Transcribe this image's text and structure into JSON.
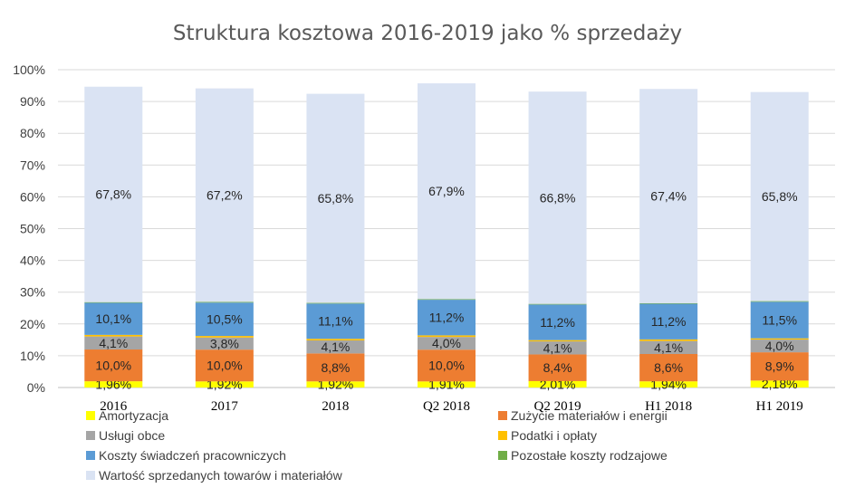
{
  "chart_data": {
    "type": "bar",
    "stacked": true,
    "title": "Struktura kosztowa 2016-2019 jako % sprzedaży",
    "xlabel": "",
    "ylabel": "",
    "ylim": [
      0,
      100
    ],
    "yticks": [
      "0%",
      "10%",
      "20%",
      "30%",
      "40%",
      "50%",
      "60%",
      "70%",
      "80%",
      "90%",
      "100%"
    ],
    "grid": true,
    "legend_position": "bottom",
    "categories": [
      "2016",
      "2017",
      "2018",
      "Q2 2018",
      "Q2 2019",
      "H1 2018",
      "H1 2019"
    ],
    "series": [
      {
        "name": "Amortyzacja",
        "color": "#FFFF00",
        "values": [
          1.96,
          1.92,
          1.92,
          1.91,
          2.01,
          1.94,
          2.18
        ],
        "labels": [
          "1,96%",
          "1,92%",
          "1,92%",
          "1,91%",
          "2,01%",
          "1,94%",
          "2,18%"
        ]
      },
      {
        "name": "Zużycie materiałów i energii",
        "color": "#ED7D31",
        "values": [
          10.0,
          10.0,
          8.8,
          10.0,
          8.4,
          8.6,
          8.9
        ],
        "labels": [
          "10,0%",
          "10,0%",
          "8,8%",
          "10,0%",
          "8,4%",
          "8,6%",
          "8,9%"
        ]
      },
      {
        "name": "Usługi obce",
        "color": "#A5A5A5",
        "values": [
          4.1,
          3.8,
          4.1,
          4.0,
          4.1,
          4.1,
          4.0
        ],
        "labels": [
          "4,1%",
          "3,8%",
          "4,1%",
          "4,0%",
          "4,1%",
          "4,1%",
          "4,0%"
        ]
      },
      {
        "name": "Podatki i opłaty",
        "color": "#FFC000",
        "values": [
          0.5,
          0.5,
          0.5,
          0.5,
          0.4,
          0.5,
          0.4
        ],
        "labels": []
      },
      {
        "name": "Koszty świadczeń pracowniczych",
        "color": "#5B9BD5",
        "values": [
          10.1,
          10.5,
          11.1,
          11.2,
          11.2,
          11.2,
          11.5
        ],
        "labels": [
          "10,1%",
          "10,5%",
          "11,1%",
          "11,2%",
          "11,2%",
          "11,2%",
          "11,5%"
        ]
      },
      {
        "name": "Pozostałe koszty rodzajowe",
        "color": "#70AD47",
        "values": [
          0.2,
          0.2,
          0.2,
          0.2,
          0.2,
          0.2,
          0.2
        ],
        "labels": []
      },
      {
        "name": "Wartość sprzedanych towarów i materiałów",
        "color": "#DAE3F3",
        "values": [
          67.8,
          67.2,
          65.8,
          67.9,
          66.8,
          67.4,
          65.8
        ],
        "labels": [
          "67,8%",
          "67,2%",
          "65,8%",
          "67,9%",
          "66,8%",
          "67,4%",
          "65,8%"
        ]
      }
    ]
  }
}
